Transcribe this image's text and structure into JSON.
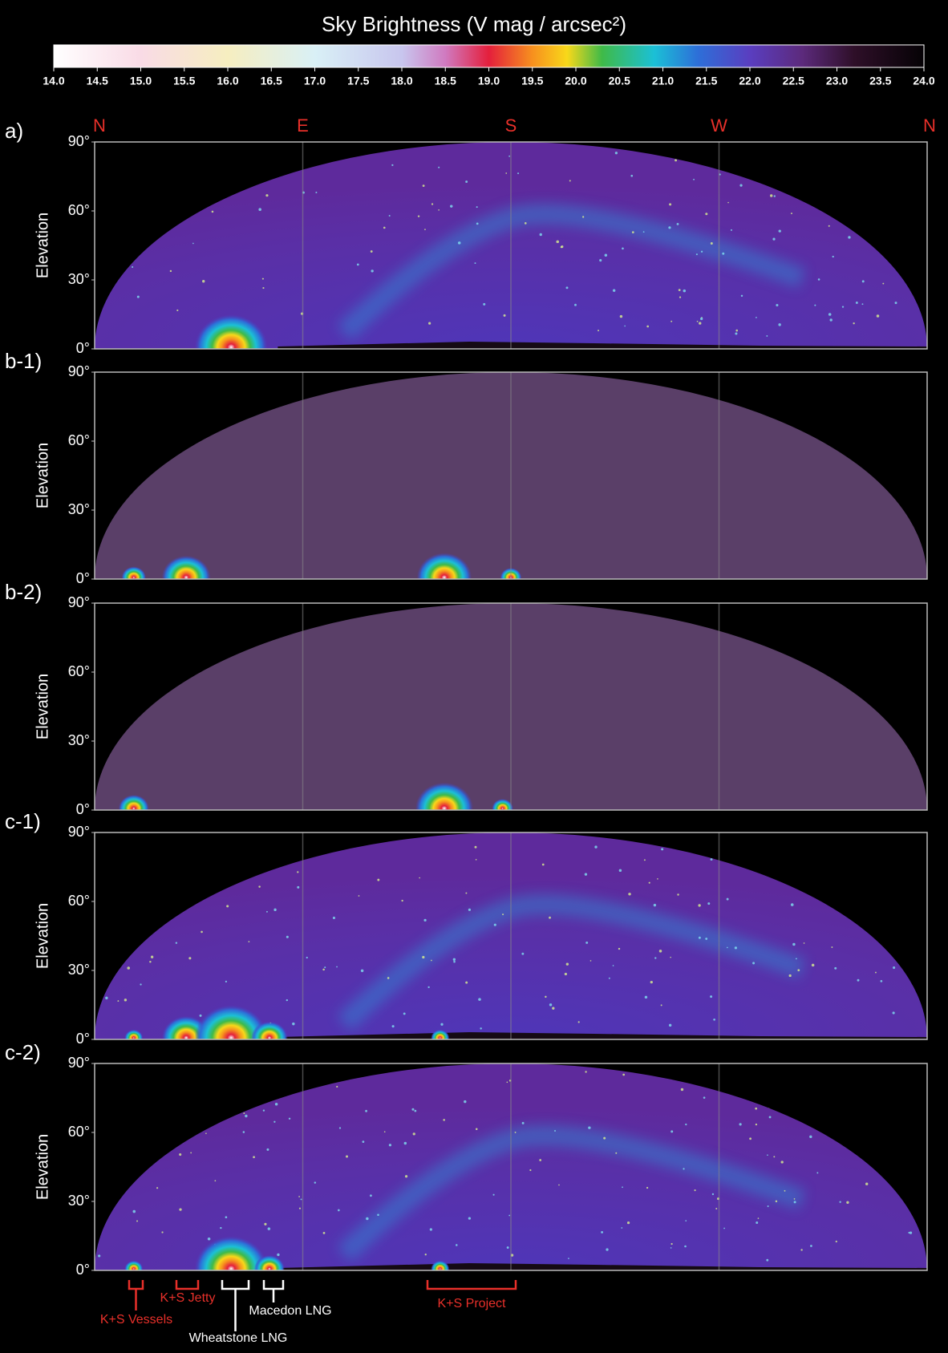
{
  "colorbar": {
    "title": "Sky Brightness (V mag / arcsec²)",
    "lim": [
      14,
      24
    ],
    "ticks": [
      {
        "value": 14,
        "label": "14.0"
      },
      {
        "value": 14.5,
        "label": "14.5"
      },
      {
        "value": 15,
        "label": "15.0"
      },
      {
        "value": 15.5,
        "label": "15.5"
      },
      {
        "value": 16,
        "label": "16.0"
      },
      {
        "value": 16.5,
        "label": "16.5"
      },
      {
        "value": 17,
        "label": "17.0"
      },
      {
        "value": 17.5,
        "label": "17.5"
      },
      {
        "value": 18,
        "label": "18.0"
      },
      {
        "value": 18.5,
        "label": "18.5"
      },
      {
        "value": 19,
        "label": "19.0"
      },
      {
        "value": 19.5,
        "label": "19.5"
      },
      {
        "value": 20,
        "label": "20.0"
      },
      {
        "value": 20.5,
        "label": "20.5"
      },
      {
        "value": 21,
        "label": "21.0"
      },
      {
        "value": 21.5,
        "label": "21.5"
      },
      {
        "value": 22,
        "label": "22.0"
      },
      {
        "value": 22.5,
        "label": "22.5"
      },
      {
        "value": 23,
        "label": "23.0"
      },
      {
        "value": 23.5,
        "label": "23.5"
      },
      {
        "value": 24,
        "label": "24.0"
      }
    ]
  },
  "directions": [
    "N",
    "E",
    "S",
    "W",
    "N"
  ],
  "panels": [
    {
      "label": "a)",
      "ylabel": "Elevation",
      "ylim": [
        0,
        90
      ],
      "yticks": [
        {
          "value": 0,
          "label": "0°"
        },
        {
          "value": 30,
          "label": "30°"
        },
        {
          "value": 60,
          "label": "60°"
        },
        {
          "value": 90,
          "label": "90°"
        }
      ]
    },
    {
      "label": "b-1)",
      "ylabel": "Elevation",
      "ylim": [
        0,
        90
      ],
      "yticks": [
        {
          "value": 0,
          "label": "0°"
        },
        {
          "value": 30,
          "label": "30°"
        },
        {
          "value": 60,
          "label": "60°"
        },
        {
          "value": 90,
          "label": "90°"
        }
      ]
    },
    {
      "label": "b-2)",
      "ylabel": "Elevation",
      "ylim": [
        0,
        90
      ],
      "yticks": [
        {
          "value": 0,
          "label": "0°"
        },
        {
          "value": 30,
          "label": "30°"
        },
        {
          "value": 60,
          "label": "60°"
        },
        {
          "value": 90,
          "label": "90°"
        }
      ]
    },
    {
      "label": "c-1)",
      "ylabel": "Elevation",
      "ylim": [
        0,
        90
      ],
      "yticks": [
        {
          "value": 0,
          "label": "0°"
        },
        {
          "value": 30,
          "label": "30°"
        },
        {
          "value": 60,
          "label": "60°"
        },
        {
          "value": 90,
          "label": "90°"
        }
      ]
    },
    {
      "label": "c-2)",
      "ylabel": "Elevation",
      "ylim": [
        0,
        90
      ],
      "yticks": [
        {
          "value": 0,
          "label": "0°"
        },
        {
          "value": 30,
          "label": "30°"
        },
        {
          "value": 60,
          "label": "60°"
        },
        {
          "value": 90,
          "label": "90°"
        }
      ]
    }
  ],
  "annotations": [
    {
      "text": "K+S Vessels",
      "color": "#e8302a"
    },
    {
      "text": "K+S Jetty",
      "color": "#e8302a"
    },
    {
      "text": "Wheatstone LNG",
      "color": "#ffffff"
    },
    {
      "text": "Macedon LNG",
      "color": "#ffffff"
    },
    {
      "text": "K+S Project",
      "color": "#e8302a"
    }
  ]
}
